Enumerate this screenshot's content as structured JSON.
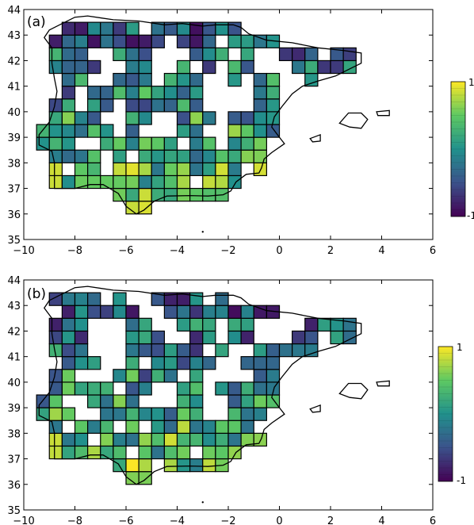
{
  "panels": [
    {
      "label": "(a)",
      "x_ticks": [
        "−10",
        "−8",
        "−6",
        "−4",
        "−2",
        "0",
        "2",
        "4",
        "6"
      ],
      "y_ticks": [
        "35",
        "36",
        "37",
        "38",
        "39",
        "40",
        "41",
        "42",
        "43",
        "44"
      ],
      "colorbar": {
        "max_label": "1",
        "min_label": "-1"
      }
    },
    {
      "label": "(b)",
      "x_ticks": [
        "−10",
        "−8",
        "−6",
        "−4",
        "−2",
        "0",
        "2",
        "4",
        "6"
      ],
      "y_ticks": [
        "35",
        "36",
        "37",
        "38",
        "39",
        "40",
        "41",
        "42",
        "43",
        "44"
      ],
      "colorbar": {
        "max_label": "1",
        "min_label": "-1"
      }
    }
  ],
  "map": {
    "lon_range": [
      -10,
      6
    ],
    "lat_range": [
      35,
      44
    ],
    "cell_deg": 0.5,
    "colormap": [
      "#440154",
      "#3b528b",
      "#21918c",
      "#5ec962",
      "#fde725"
    ],
    "region": "Iberian Peninsula and Balearic Islands"
  }
}
